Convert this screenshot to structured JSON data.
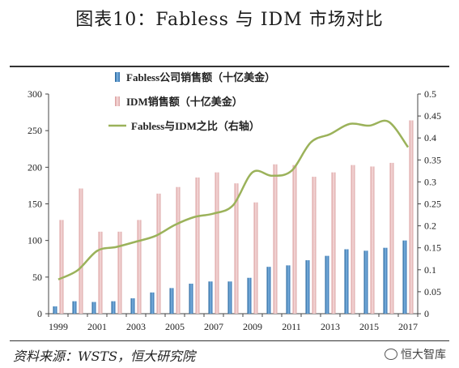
{
  "page": {
    "title": "图表10：Fabless 与 IDM 市场对比",
    "source": "资料来源：WSTS，恒大研究院",
    "watermark": "恒大智库"
  },
  "chart_data": {
    "type": "bar",
    "title": "",
    "xlabel": "",
    "ylabel": "",
    "ylabel_right": "",
    "x": [
      1999,
      2000,
      2001,
      2002,
      2003,
      2004,
      2005,
      2006,
      2007,
      2008,
      2009,
      2010,
      2011,
      2012,
      2013,
      2014,
      2015,
      2016,
      2017
    ],
    "x_tick_labels": [
      "1999",
      "2001",
      "2003",
      "2005",
      "2007",
      "2009",
      "2011",
      "2013",
      "2015",
      "2017"
    ],
    "ylim": [
      0,
      300
    ],
    "y_ticks": [
      0,
      50,
      100,
      150,
      200,
      250,
      300
    ],
    "y2lim": [
      0,
      0.5
    ],
    "y2_ticks": [
      "0",
      "0.05",
      "0.1",
      "0.15",
      "0.2",
      "0.25",
      "0.3",
      "0.35",
      "0.4",
      "0.45",
      "0.5"
    ],
    "legend_position": "top-center",
    "grid": false,
    "series": [
      {
        "name": "Fabless公司销售额（十亿美金）",
        "type": "bar",
        "axis": "left",
        "color": "#3b7fc0",
        "values": [
          10,
          17,
          16,
          17,
          21,
          29,
          35,
          41,
          44,
          44,
          49,
          64,
          66,
          73,
          79,
          88,
          86,
          90,
          100
        ]
      },
      {
        "name": "IDM销售额（十亿美金）",
        "type": "bar",
        "axis": "left",
        "color": "#e8b4b4",
        "values": [
          128,
          171,
          112,
          112,
          128,
          164,
          173,
          186,
          193,
          178,
          152,
          204,
          203,
          187,
          193,
          203,
          201,
          206,
          264
        ]
      },
      {
        "name": "Fabless与IDM之比（右轴）",
        "type": "line",
        "axis": "right",
        "color": "#9bb25a",
        "values": [
          0.078,
          0.099,
          0.143,
          0.152,
          0.164,
          0.177,
          0.202,
          0.22,
          0.228,
          0.247,
          0.322,
          0.314,
          0.325,
          0.39,
          0.409,
          0.432,
          0.428,
          0.437,
          0.379
        ]
      }
    ]
  }
}
